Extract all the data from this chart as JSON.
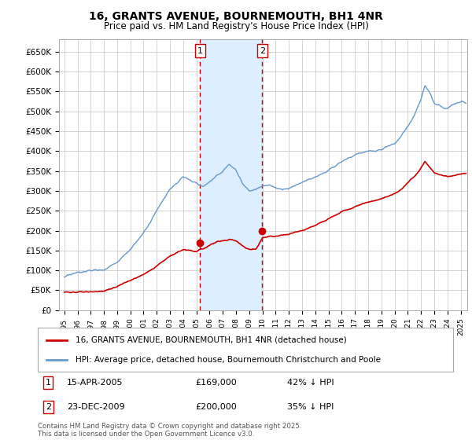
{
  "title": "16, GRANTS AVENUE, BOURNEMOUTH, BH1 4NR",
  "subtitle": "Price paid vs. HM Land Registry's House Price Index (HPI)",
  "background_color": "#ffffff",
  "grid_color": "#cccccc",
  "hpi_color": "#6699cc",
  "price_color": "#cc0000",
  "shade_color": "#ddeeff",
  "transaction1": {
    "date": "15-APR-2005",
    "price": 169000,
    "pct": "42%",
    "label": "1"
  },
  "transaction2": {
    "date": "23-DEC-2009",
    "price": 200000,
    "pct": "35%",
    "label": "2"
  },
  "transaction1_year": 2005.28,
  "transaction2_year": 2009.98,
  "ylim_min": 0,
  "ylim_max": 680000,
  "yticks": [
    0,
    50000,
    100000,
    150000,
    200000,
    250000,
    300000,
    350000,
    400000,
    450000,
    500000,
    550000,
    600000,
    650000
  ],
  "xlim_start": 1994.6,
  "xlim_end": 2025.5,
  "legend_label1": "16, GRANTS AVENUE, BOURNEMOUTH, BH1 4NR (detached house)",
  "legend_label2": "HPI: Average price, detached house, Bournemouth Christchurch and Poole",
  "footer": "Contains HM Land Registry data © Crown copyright and database right 2025.\nThis data is licensed under the Open Government Licence v3.0."
}
